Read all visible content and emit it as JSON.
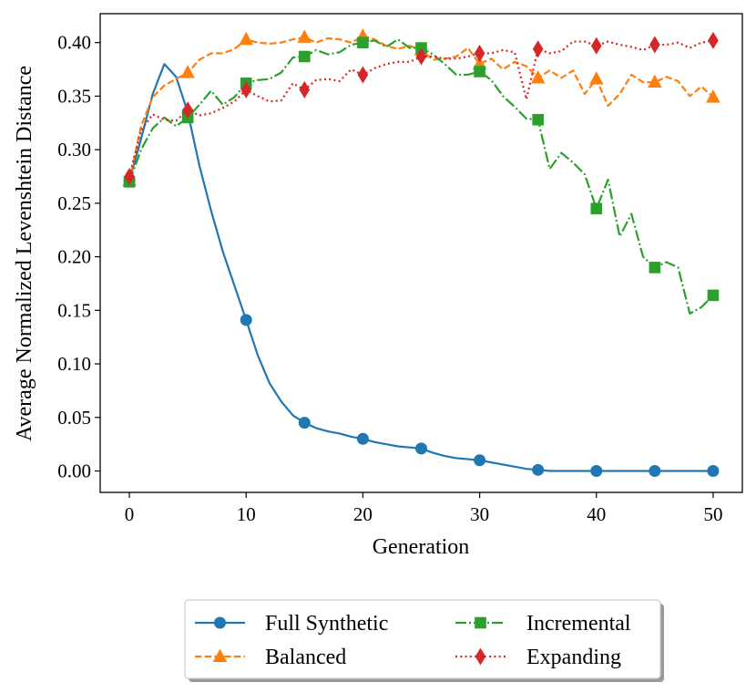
{
  "chart_data": {
    "type": "line",
    "title": "",
    "xlabel": "Generation",
    "ylabel": "Average Normalized Levenshtein Distance",
    "xlim": [
      -2.5,
      52.5
    ],
    "ylim": [
      -0.02,
      0.427
    ],
    "xticks": [
      0,
      10,
      20,
      30,
      40,
      50
    ],
    "xtick_labels": [
      "0",
      "10",
      "20",
      "30",
      "40",
      "50"
    ],
    "yticks": [
      0.0,
      0.05,
      0.1,
      0.15,
      0.2,
      0.25,
      0.3,
      0.35,
      0.4
    ],
    "ytick_labels": [
      "0.00",
      "0.05",
      "0.10",
      "0.15",
      "0.20",
      "0.25",
      "0.30",
      "0.35",
      "0.40"
    ],
    "grid": false,
    "legend_position": "below",
    "series": [
      {
        "name": "Full Synthetic",
        "color": "#1f77b4",
        "linestyle": "solid",
        "marker": "circle",
        "marker_every": 5,
        "x": [
          0,
          1,
          2,
          3,
          4,
          5,
          6,
          7,
          8,
          9,
          10,
          11,
          12,
          13,
          14,
          15,
          16,
          17,
          18,
          19,
          20,
          21,
          22,
          23,
          24,
          25,
          26,
          27,
          28,
          29,
          30,
          31,
          32,
          33,
          34,
          35,
          36,
          37,
          38,
          39,
          40,
          41,
          42,
          43,
          44,
          45,
          46,
          47,
          48,
          49,
          50
        ],
        "y": [
          0.271,
          0.31,
          0.352,
          0.38,
          0.368,
          0.335,
          0.285,
          0.243,
          0.205,
          0.173,
          0.141,
          0.108,
          0.082,
          0.065,
          0.052,
          0.045,
          0.04,
          0.037,
          0.035,
          0.032,
          0.03,
          0.027,
          0.025,
          0.023,
          0.022,
          0.021,
          0.017,
          0.014,
          0.012,
          0.011,
          0.01,
          0.008,
          0.006,
          0.004,
          0.002,
          0.001,
          0.0,
          0.0,
          0.0,
          0.0,
          0.0,
          0.0,
          0.0,
          0.0,
          0.0,
          0.0,
          0.0,
          0.0,
          0.0,
          0.0,
          0.0
        ]
      },
      {
        "name": "Balanced",
        "color": "#ff7f0e",
        "linestyle": "dashed",
        "marker": "triangle",
        "marker_every": 5,
        "x": [
          0,
          1,
          2,
          3,
          4,
          5,
          6,
          7,
          8,
          9,
          10,
          11,
          12,
          13,
          14,
          15,
          16,
          17,
          18,
          19,
          20,
          21,
          22,
          23,
          24,
          25,
          26,
          27,
          28,
          29,
          30,
          31,
          32,
          33,
          34,
          35,
          36,
          37,
          38,
          39,
          40,
          41,
          42,
          43,
          44,
          45,
          46,
          47,
          48,
          49,
          50
        ],
        "y": [
          0.271,
          0.322,
          0.349,
          0.36,
          0.366,
          0.372,
          0.384,
          0.39,
          0.39,
          0.394,
          0.403,
          0.4,
          0.399,
          0.4,
          0.403,
          0.405,
          0.4,
          0.404,
          0.403,
          0.4,
          0.406,
          0.403,
          0.397,
          0.394,
          0.397,
          0.393,
          0.384,
          0.385,
          0.387,
          0.395,
          0.38,
          0.385,
          0.375,
          0.382,
          0.378,
          0.367,
          0.374,
          0.367,
          0.374,
          0.352,
          0.366,
          0.341,
          0.352,
          0.37,
          0.363,
          0.363,
          0.368,
          0.364,
          0.35,
          0.359,
          0.349
        ]
      },
      {
        "name": "Incremental",
        "color": "#2ca02c",
        "linestyle": "dashdot",
        "marker": "square",
        "marker_every": 5,
        "x": [
          0,
          1,
          2,
          3,
          4,
          5,
          6,
          7,
          8,
          9,
          10,
          11,
          12,
          13,
          14,
          15,
          16,
          17,
          18,
          19,
          20,
          21,
          22,
          23,
          24,
          25,
          26,
          27,
          28,
          29,
          30,
          31,
          32,
          33,
          34,
          35,
          36,
          37,
          38,
          39,
          40,
          41,
          42,
          43,
          44,
          45,
          46,
          47,
          48,
          49,
          50
        ],
        "y": [
          0.27,
          0.3,
          0.32,
          0.33,
          0.322,
          0.33,
          0.342,
          0.355,
          0.342,
          0.349,
          0.362,
          0.365,
          0.366,
          0.372,
          0.386,
          0.387,
          0.393,
          0.389,
          0.391,
          0.398,
          0.4,
          0.402,
          0.396,
          0.403,
          0.395,
          0.395,
          0.389,
          0.38,
          0.37,
          0.37,
          0.373,
          0.365,
          0.35,
          0.34,
          0.329,
          0.328,
          0.282,
          0.297,
          0.288,
          0.277,
          0.245,
          0.272,
          0.219,
          0.24,
          0.2,
          0.19,
          0.195,
          0.19,
          0.147,
          0.153,
          0.164
        ]
      },
      {
        "name": "Expanding",
        "color": "#d62728",
        "linestyle": "dotted",
        "marker": "diamond",
        "marker_every": 5,
        "x": [
          0,
          1,
          2,
          3,
          4,
          5,
          6,
          7,
          8,
          9,
          10,
          11,
          12,
          13,
          14,
          15,
          16,
          17,
          18,
          19,
          20,
          21,
          22,
          23,
          24,
          25,
          26,
          27,
          28,
          29,
          30,
          31,
          32,
          33,
          34,
          35,
          36,
          37,
          38,
          39,
          40,
          41,
          42,
          43,
          44,
          45,
          46,
          47,
          48,
          49,
          50
        ],
        "y": [
          0.275,
          0.318,
          0.333,
          0.328,
          0.327,
          0.337,
          0.332,
          0.334,
          0.339,
          0.345,
          0.356,
          0.35,
          0.345,
          0.346,
          0.362,
          0.356,
          0.365,
          0.366,
          0.364,
          0.375,
          0.37,
          0.376,
          0.38,
          0.382,
          0.382,
          0.387,
          0.387,
          0.385,
          0.385,
          0.387,
          0.39,
          0.39,
          0.393,
          0.391,
          0.347,
          0.394,
          0.39,
          0.392,
          0.401,
          0.401,
          0.397,
          0.401,
          0.398,
          0.396,
          0.393,
          0.398,
          0.398,
          0.4,
          0.395,
          0.4,
          0.402
        ]
      }
    ]
  }
}
